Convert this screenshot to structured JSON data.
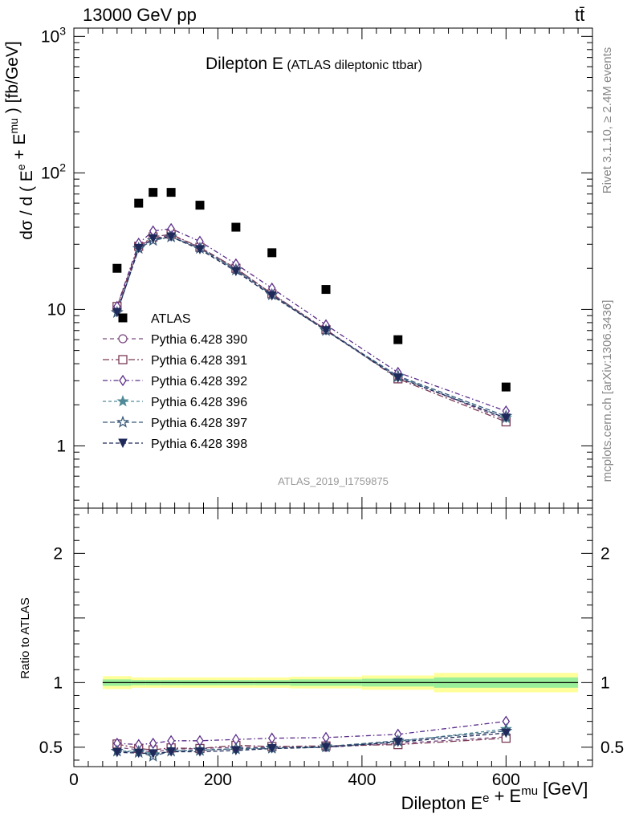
{
  "header": {
    "beam": "13000 GeV pp",
    "process": "tt̄",
    "side_top": "Rivet 3.1.10, ≥ 2.4M events",
    "side_bottom": "mcplots.cern.ch [arXiv:1306.3436]"
  },
  "chart_data": [
    {
      "type": "scatter",
      "title": "Dilepton E",
      "subtitle": "(ATLAS dileptonic ttbar)",
      "ylabel": "dσ / d ( E^e + E^mu ) [fb/GeV]",
      "yscale": "log",
      "ylim": [
        0.35,
        1150
      ],
      "xlim": [
        0,
        720
      ],
      "yticks": [
        {
          "value": 1,
          "label": "1"
        },
        {
          "value": 10,
          "label": "10"
        },
        {
          "value": 100,
          "label": "10^2"
        },
        {
          "value": 1000,
          "label": "10^3"
        }
      ],
      "legend_position": "left",
      "watermark": "ATLAS_2019_I1759875",
      "series": [
        {
          "name": "ATLAS",
          "color": "#000000",
          "marker": "square-filled",
          "dash": "none",
          "x": [
            60,
            90,
            110,
            135,
            175,
            225,
            275,
            350,
            450,
            600
          ],
          "y": [
            20,
            60,
            72,
            72,
            58,
            40,
            26,
            14,
            6,
            2.7
          ]
        },
        {
          "name": "Pythia 6.428 390",
          "color": "#7a4a7f",
          "marker": "circle-open",
          "dash": "5,4",
          "x": [
            60,
            90,
            110,
            135,
            175,
            225,
            275,
            350,
            450,
            600
          ],
          "y": [
            10,
            29,
            33,
            35,
            28.5,
            20,
            13,
            7.1,
            3.2,
            1.55
          ]
        },
        {
          "name": "Pythia 6.428 391",
          "color": "#7a3a55",
          "marker": "square-open",
          "dash": "8,3,2,3",
          "x": [
            60,
            90,
            110,
            135,
            175,
            225,
            275,
            350,
            450,
            600
          ],
          "y": [
            10.5,
            29,
            34,
            35.5,
            28.5,
            20,
            13,
            7.1,
            3.1,
            1.5
          ]
        },
        {
          "name": "Pythia 6.428 392",
          "color": "#5b2d8a",
          "marker": "diamond-open",
          "dash": "6,3,1.5,3",
          "x": [
            60,
            90,
            110,
            135,
            175,
            225,
            275,
            350,
            450,
            600
          ],
          "y": [
            10.5,
            30.5,
            37.5,
            39,
            31.5,
            21.5,
            14.3,
            7.7,
            3.45,
            1.8
          ]
        },
        {
          "name": "Pythia 6.428 396",
          "color": "#4f8a96",
          "marker": "star-filled",
          "dash": "4,3",
          "x": [
            60,
            90,
            110,
            135,
            175,
            225,
            275,
            350,
            450,
            600
          ],
          "y": [
            9.5,
            28,
            32,
            34,
            28,
            19.5,
            12.8,
            7,
            3.2,
            1.6
          ]
        },
        {
          "name": "Pythia 6.428 397",
          "color": "#3a5a7a",
          "marker": "star-open",
          "dash": "6,3",
          "x": [
            60,
            90,
            110,
            135,
            175,
            225,
            275,
            350,
            450,
            600
          ],
          "y": [
            9.5,
            28,
            32,
            34,
            28,
            19.5,
            12.8,
            7,
            3.25,
            1.65
          ]
        },
        {
          "name": "Pythia 6.428 398",
          "color": "#1f2a5a",
          "marker": "triangle-down-filled",
          "dash": "5,3",
          "x": [
            60,
            90,
            110,
            135,
            175,
            225,
            275,
            350,
            450,
            600
          ],
          "y": [
            9.5,
            28,
            33,
            34,
            27.5,
            19,
            12.6,
            7,
            3.15,
            1.6
          ]
        }
      ]
    },
    {
      "type": "scatter",
      "ylabel": "Ratio to ATLAS",
      "xlabel": "Dilepton E^e + E^mu [GeV]",
      "ylim": [
        0.35,
        2.35
      ],
      "xlim": [
        0,
        720
      ],
      "xticks": [
        0,
        200,
        400,
        600
      ],
      "yticks": [
        0.5,
        1,
        2
      ],
      "reference_line": 1,
      "uncertainty_bands": [
        {
          "x0": 40,
          "x1": 80,
          "inner": [
            0.975,
            1.025
          ],
          "outer": [
            0.95,
            1.05
          ]
        },
        {
          "x0": 80,
          "x1": 100,
          "inner": [
            0.98,
            1.02
          ],
          "outer": [
            0.96,
            1.04
          ]
        },
        {
          "x0": 100,
          "x1": 120,
          "inner": [
            0.98,
            1.02
          ],
          "outer": [
            0.96,
            1.04
          ]
        },
        {
          "x0": 120,
          "x1": 150,
          "inner": [
            0.98,
            1.02
          ],
          "outer": [
            0.96,
            1.04
          ]
        },
        {
          "x0": 150,
          "x1": 200,
          "inner": [
            0.98,
            1.02
          ],
          "outer": [
            0.96,
            1.04
          ]
        },
        {
          "x0": 200,
          "x1": 250,
          "inner": [
            0.98,
            1.02
          ],
          "outer": [
            0.96,
            1.04
          ]
        },
        {
          "x0": 250,
          "x1": 300,
          "inner": [
            0.98,
            1.02
          ],
          "outer": [
            0.96,
            1.04
          ]
        },
        {
          "x0": 300,
          "x1": 400,
          "inner": [
            0.975,
            1.025
          ],
          "outer": [
            0.955,
            1.045
          ]
        },
        {
          "x0": 400,
          "x1": 500,
          "inner": [
            0.97,
            1.03
          ],
          "outer": [
            0.945,
            1.055
          ]
        },
        {
          "x0": 500,
          "x1": 700,
          "inner": [
            0.96,
            1.04
          ],
          "outer": [
            0.925,
            1.075
          ]
        }
      ],
      "series": [
        {
          "name": "Pythia 6.428 390",
          "x": [
            60,
            90,
            110,
            135,
            175,
            225,
            275,
            350,
            450,
            600
          ],
          "y": [
            0.5,
            0.48,
            0.46,
            0.485,
            0.49,
            0.5,
            0.5,
            0.5,
            0.53,
            0.58
          ]
        },
        {
          "name": "Pythia 6.428 391",
          "x": [
            60,
            90,
            110,
            135,
            175,
            225,
            275,
            350,
            450,
            600
          ],
          "y": [
            0.525,
            0.49,
            0.48,
            0.495,
            0.49,
            0.515,
            0.505,
            0.51,
            0.52,
            0.57
          ]
        },
        {
          "name": "Pythia 6.428 392",
          "x": [
            60,
            90,
            110,
            135,
            175,
            225,
            275,
            350,
            450,
            600
          ],
          "y": [
            0.53,
            0.52,
            0.53,
            0.55,
            0.55,
            0.56,
            0.57,
            0.575,
            0.6,
            0.7
          ]
        },
        {
          "name": "Pythia 6.428 396",
          "x": [
            60,
            90,
            110,
            135,
            175,
            225,
            275,
            350,
            450,
            600
          ],
          "y": [
            0.47,
            0.47,
            0.445,
            0.47,
            0.48,
            0.485,
            0.49,
            0.5,
            0.545,
            0.64
          ]
        },
        {
          "name": "Pythia 6.428 397",
          "x": [
            60,
            90,
            110,
            135,
            175,
            225,
            275,
            350,
            450,
            600
          ],
          "y": [
            0.47,
            0.46,
            0.43,
            0.47,
            0.475,
            0.49,
            0.495,
            0.505,
            0.55,
            0.625
          ]
        },
        {
          "name": "Pythia 6.428 398",
          "x": [
            60,
            90,
            110,
            135,
            175,
            225,
            275,
            350,
            450,
            600
          ],
          "y": [
            0.46,
            0.455,
            0.45,
            0.465,
            0.465,
            0.475,
            0.49,
            0.5,
            0.54,
            0.61
          ]
        }
      ]
    }
  ]
}
